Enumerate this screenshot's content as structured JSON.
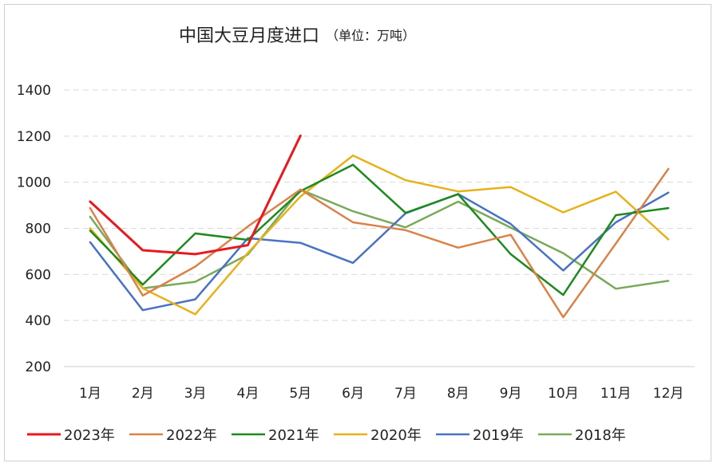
{
  "chart_data": {
    "type": "line",
    "title": "中国大豆月度进口",
    "subtitle": "（单位：万吨）",
    "xlabel": "",
    "ylabel": "",
    "categories": [
      "1月",
      "2月",
      "3月",
      "4月",
      "5月",
      "6月",
      "7月",
      "8月",
      "9月",
      "10月",
      "11月",
      "12月"
    ],
    "ylim": [
      200,
      1400
    ],
    "yticks": [
      1400,
      1200,
      1000,
      800,
      600,
      400,
      200
    ],
    "grid": true,
    "legend_position": "bottom",
    "series": [
      {
        "name": "2023年",
        "color": "#e8191f",
        "values": [
          916,
          705,
          688,
          727,
          1202,
          null,
          null,
          null,
          null,
          null,
          null,
          null
        ]
      },
      {
        "name": "2022年",
        "color": "#d9834a",
        "values": [
          888,
          508,
          634,
          808,
          968,
          826,
          792,
          716,
          772,
          414,
          734,
          1058
        ]
      },
      {
        "name": "2021年",
        "color": "#1e8a1e",
        "values": [
          790,
          556,
          778,
          750,
          961,
          1076,
          867,
          948,
          688,
          511,
          857,
          888
        ]
      },
      {
        "name": "2020年",
        "color": "#e6b21a",
        "values": [
          800,
          540,
          427,
          693,
          938,
          1116,
          1009,
          960,
          979,
          869,
          959,
          752
        ]
      },
      {
        "name": "2019年",
        "color": "#4a72c4",
        "values": [
          740,
          445,
          492,
          757,
          737,
          650,
          865,
          949,
          819,
          617,
          826,
          955
        ]
      },
      {
        "name": "2018年",
        "color": "#78aa5a",
        "values": [
          850,
          540,
          568,
          686,
          968,
          874,
          804,
          916,
          803,
          692,
          538,
          572
        ]
      }
    ]
  }
}
